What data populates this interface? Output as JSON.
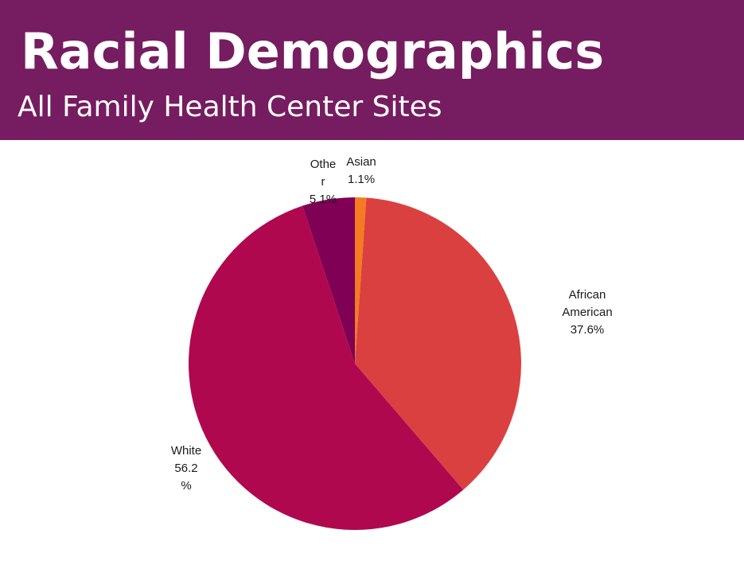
{
  "header": {
    "title": "Racial Demographics",
    "subtitle": "All Family Health Center Sites"
  },
  "colors": {
    "header_bg": "#761c60"
  },
  "chart_data": {
    "type": "pie",
    "slices": [
      {
        "label": "Asian",
        "value": 1.1,
        "color": "#f47b20",
        "label_lines": [
          "Asian",
          "1.1%"
        ]
      },
      {
        "label": "African American",
        "value": 37.6,
        "color": "#db4040",
        "label_lines": [
          "African",
          "American",
          "37.6%"
        ]
      },
      {
        "label": "White",
        "value": 56.2,
        "color": "#b0084f",
        "label_lines": [
          "White",
          "56.2",
          "%"
        ]
      },
      {
        "label": "Other",
        "value": 5.1,
        "color": "#7f0055",
        "label_lines": [
          "Othe",
          "r",
          "5.1%"
        ]
      }
    ]
  }
}
